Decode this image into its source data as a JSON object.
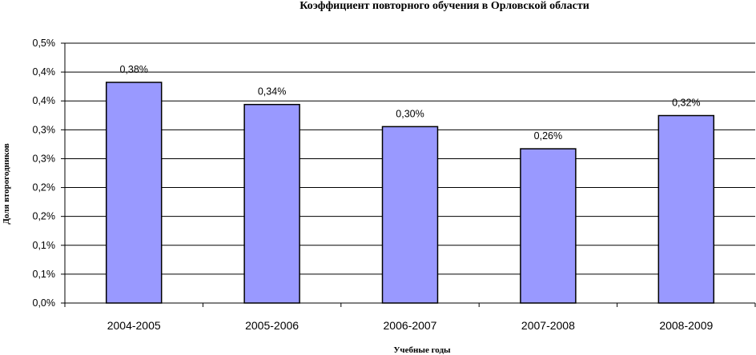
{
  "chart_data": {
    "type": "bar",
    "title": "Коэффициент повторного обучения в Орловской области",
    "xlabel": "Учебные годы",
    "ylabel": "Доля второгодников",
    "categories": [
      "2004-2005",
      "2005-2006",
      "2006-2007",
      "2007-2008",
      "2008-2009"
    ],
    "values": [
      0.38,
      0.34,
      0.3,
      0.26,
      0.32
    ],
    "value_labels": [
      "0,38%",
      "0,34%",
      "0,30%",
      "0,26%",
      "0,32%"
    ],
    "y_tick_labels": [
      "0,0%",
      "0,1%",
      "0,1%",
      "0,2%",
      "0,2%",
      "0,3%",
      "0,3%",
      "0,4%",
      "0,4%",
      "0,5%"
    ],
    "ylim": [
      0.25,
      0.38
    ],
    "grid": true,
    "legend": "none",
    "colors": {
      "bar_fill": "#9999ff",
      "bar_stroke": "#000000",
      "grid": "#000000",
      "axis": "#000000"
    }
  }
}
